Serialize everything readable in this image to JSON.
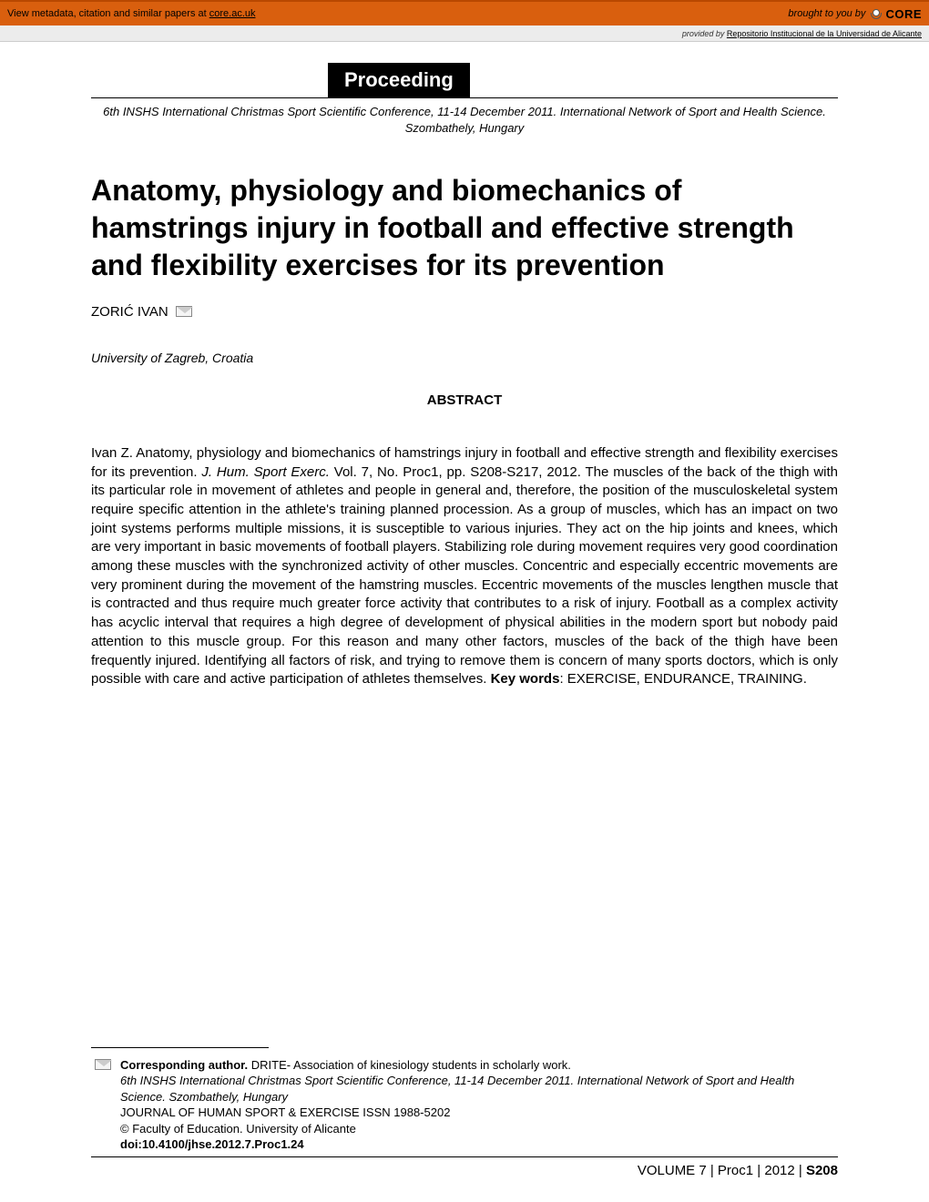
{
  "topbar": {
    "metadata_text": "View metadata, citation and similar papers at ",
    "metadata_link": "core.ac.uk",
    "brought_to_you": "brought to you by",
    "core": "CORE",
    "bg_color": "#d95f0e"
  },
  "subbar": {
    "provided_by": "provided by ",
    "repo": "Repositorio Institucional de la Universidad de Alicante"
  },
  "badge": "Proceeding",
  "conference_line": "6th INSHS International Christmas Sport Scientific Conference, 11-14 December 2011. International Network of Sport and Health Science. Szombathely, Hungary",
  "title": "Anatomy, physiology and biomechanics of hamstrings injury in football and effective strength and flexibility exercises for its prevention",
  "author": "ZORIĆ IVAN",
  "affiliation": "University of Zagreb, Croatia",
  "abstract_heading": "ABSTRACT",
  "abstract": {
    "pre_journal": "Ivan Z. Anatomy, physiology and biomechanics of hamstrings injury in football and effective strength and flexibility exercises for its prevention. ",
    "journal": "J. Hum. Sport Exerc.",
    "post_journal": " Vol. 7, No. Proc1, pp. S208-S217, 2012. The muscles of the back of the thigh with its particular role in movement of athletes and people in general and, therefore, the position of the musculoskeletal system require specific attention in the athlete's training planned procession. As a group of muscles, which has an impact on two joint systems performs multiple missions, it is susceptible to various injuries. They act on the hip joints and knees, which are very important in basic movements of football players. Stabilizing role during movement requires very good coordination among these muscles with the synchronized activity of other muscles. Concentric and especially eccentric movements are very prominent during the movement of the hamstring muscles. Eccentric movements of the muscles lengthen muscle that is contracted and thus require much greater force activity that contributes to a risk of injury. Football as a complex activity has acyclic interval that requires a high degree of development of physical abilities in the modern sport but nobody paid attention to this muscle group. For this reason and many other factors, muscles of the back of the thigh have been frequently injured. Identifying all factors of risk, and trying to remove them is concern of many sports doctors, which is only possible with care and active participation of athletes themselves. ",
    "kw_label": "Key words",
    "kw_value": ": EXERCISE, ENDURANCE, TRAINING."
  },
  "footer": {
    "corr_label": "Corresponding author.",
    "corr_text": " DRITE- Association of kinesiology students in scholarly work.",
    "conf_line": "6th INSHS International Christmas Sport Scientific Conference, 11-14 December 2011. International Network of Sport and Health Science. Szombathely, Hungary",
    "journal_line": "JOURNAL OF HUMAN SPORT & EXERCISE ISSN 1988-5202",
    "copyright": "© Faculty of Education. University of Alicante",
    "doi": "doi:10.4100/jhse.2012.7.Proc1.24"
  },
  "pagefoot": {
    "volume": "VOLUME 7 | Proc1 | 2012 |   ",
    "page": "S208"
  }
}
